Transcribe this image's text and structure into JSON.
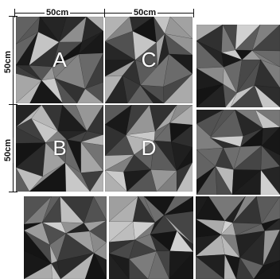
{
  "tiles": {
    "a_label": "A",
    "b_label": "B",
    "c_label": "C",
    "d_label": "D"
  },
  "dimensions": {
    "top_left": "50cm",
    "top_right": "50cm",
    "side_upper": "50cm",
    "side_lower": "50cm"
  },
  "colors": {
    "background": "#ffffff",
    "tile_dark": "#1f1f1f",
    "tile_light": "#c8c8c8",
    "seam": "#f2f2f2",
    "dimension_line": "#111111"
  }
}
